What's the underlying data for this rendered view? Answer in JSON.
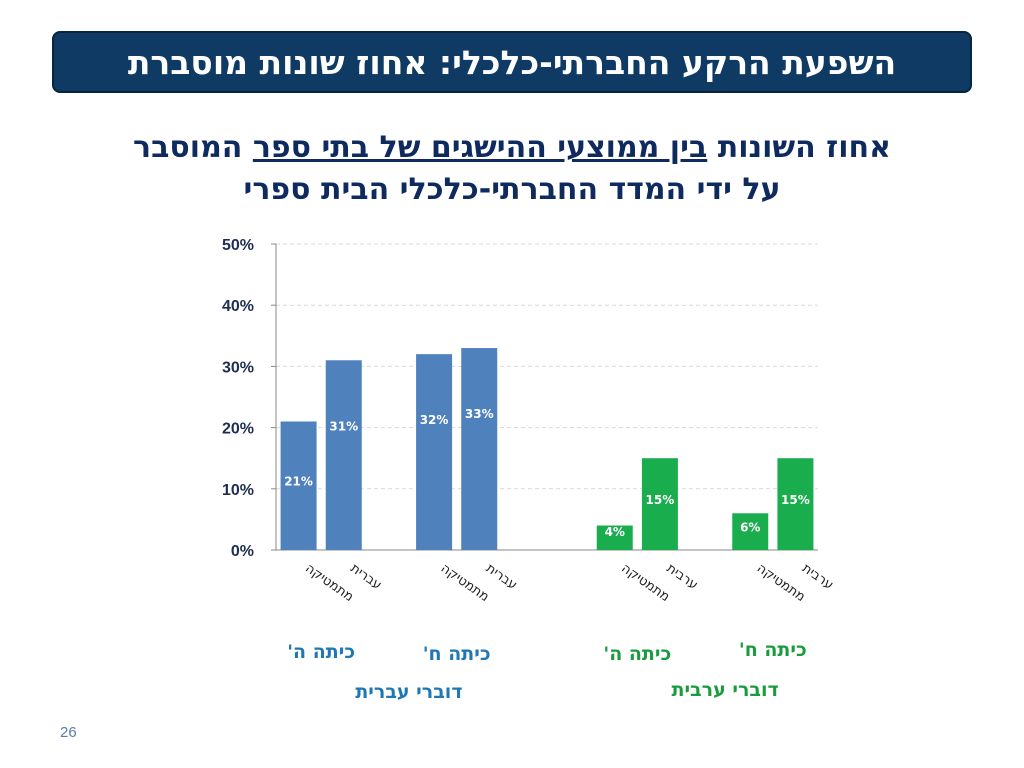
{
  "slide": {
    "title": "השפעת הרקע החברתי-כלכלי: אחוז שונות מוסברת",
    "subtitle_line1_part1": "אחוז השונות ",
    "subtitle_line1_underlined": "בין ממוצעי ההישגים של בתי ספר",
    "subtitle_line1_part2": " המוסבר",
    "subtitle_line2": "על ידי המדד החברתי-כלכלי הבית ספרי",
    "page_number": "26"
  },
  "colors": {
    "blue_bar": "#4f81bd",
    "green_bar": "#1aad4e",
    "blue_text": "#1f77b4",
    "green_text": "#1a9c3e",
    "axis_text": "#1f2d50"
  },
  "chart_data": {
    "type": "bar",
    "ylim": [
      0,
      50
    ],
    "yticks": [
      0,
      10,
      20,
      30,
      40,
      50
    ],
    "ytick_labels": [
      "0%",
      "10%",
      "20%",
      "30%",
      "40%",
      "50%"
    ],
    "grid": true,
    "bars": [
      {
        "category": "מתמטיקה",
        "value": 21,
        "label": "21%",
        "group": "כיתה ה'",
        "population": "דוברי עברית",
        "color": "blue"
      },
      {
        "category": "עברית",
        "value": 31,
        "label": "31%",
        "group": "כיתה ה'",
        "population": "דוברי עברית",
        "color": "blue"
      },
      {
        "category": "מתמטיקה",
        "value": 32,
        "label": "32%",
        "group": "כיתה ח'",
        "population": "דוברי עברית",
        "color": "blue"
      },
      {
        "category": "עברית",
        "value": 33,
        "label": "33%",
        "group": "כיתה ח'",
        "population": "דוברי עברית",
        "color": "blue"
      },
      {
        "category": "מתמטיקה",
        "value": 4,
        "label": "4%",
        "group": "כיתה ה'",
        "population": "דוברי ערבית",
        "color": "green"
      },
      {
        "category": "ערבית",
        "value": 15,
        "label": "15%",
        "group": "כיתה ה'",
        "population": "דוברי ערבית",
        "color": "green"
      },
      {
        "category": "מתמטיקה",
        "value": 6,
        "label": "6%",
        "group": "כיתה ח'",
        "population": "דוברי ערבית",
        "color": "green"
      },
      {
        "category": "ערבית",
        "value": 15,
        "label": "15%",
        "group": "כיתה ח'",
        "population": "דוברי ערבית",
        "color": "green"
      }
    ],
    "groups": [
      {
        "label": "כיתה ה'",
        "color": "blue"
      },
      {
        "label": "כיתה ח'",
        "color": "blue"
      },
      {
        "label": "כיתה ה'",
        "color": "green"
      },
      {
        "label": "כיתה ח'",
        "color": "green"
      }
    ],
    "populations": [
      {
        "label": "דוברי עברית",
        "color": "blue"
      },
      {
        "label": "דוברי ערבית",
        "color": "green"
      }
    ]
  }
}
